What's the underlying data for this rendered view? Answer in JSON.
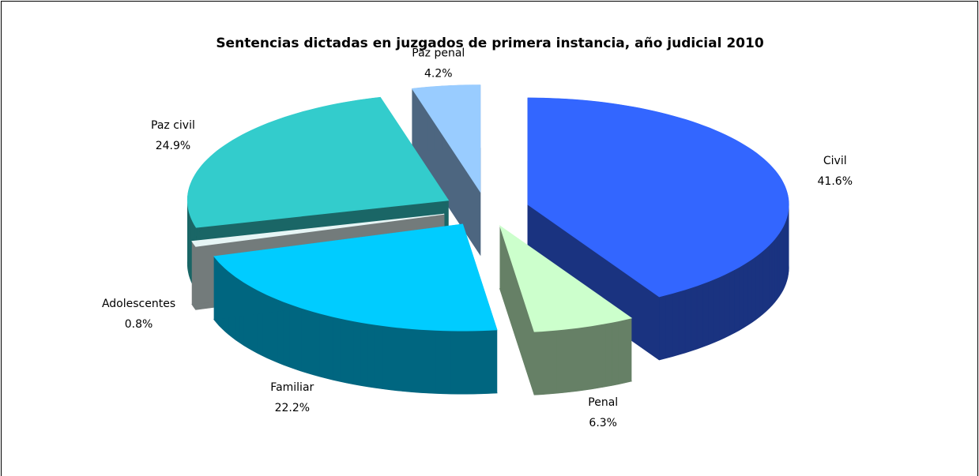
{
  "chart_data": {
    "type": "pie3d",
    "title": "Sentencias dictadas en juzgados de primera instancia, año judicial 2010",
    "categories": [
      "Civil",
      "Penal",
      "Familiar",
      "Adolescentes",
      "Paz civil",
      "Paz penal"
    ],
    "values": [
      41.6,
      6.3,
      22.2,
      0.8,
      24.9,
      4.2
    ],
    "value_labels": [
      "41.6%",
      "6.3%",
      "22.2%",
      "0.8%",
      "24.9%",
      "4.2%"
    ],
    "colors": [
      "#3366ff",
      "#ccffcc",
      "#00ccff",
      "#e6f5f5",
      "#33cccc",
      "#99ccff"
    ]
  }
}
